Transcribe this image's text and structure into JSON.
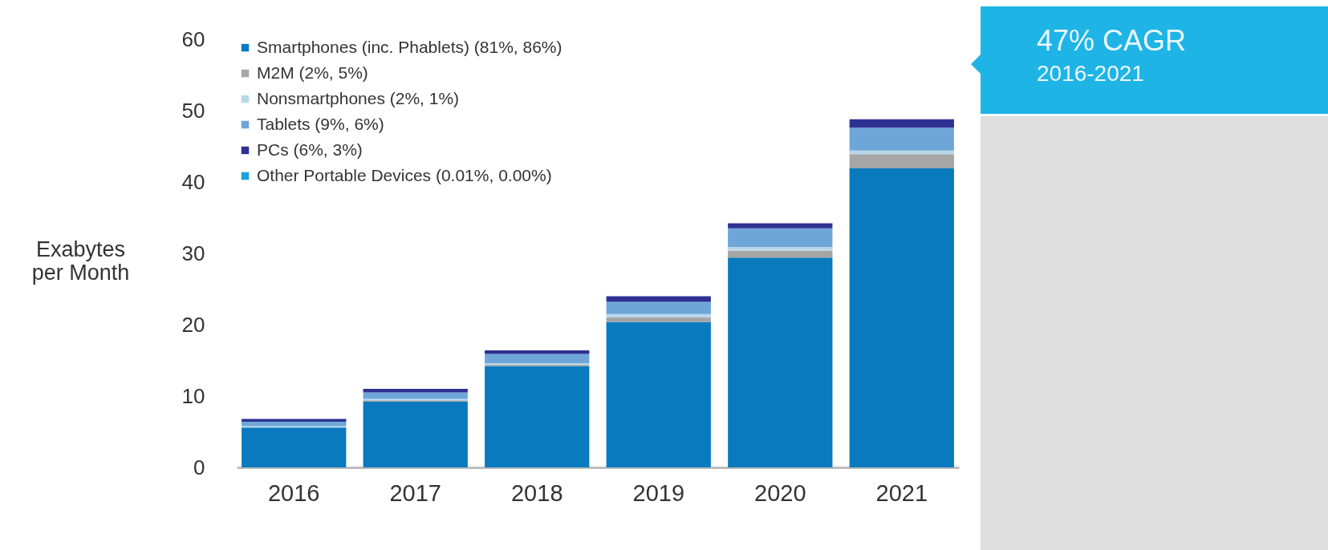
{
  "chart_data": {
    "type": "bar",
    "stacked": true,
    "ylabel": "Exabytes per Month",
    "categories": [
      "2016",
      "2017",
      "2018",
      "2019",
      "2020",
      "2021"
    ],
    "ylim": [
      0,
      60
    ],
    "yticks": [
      0,
      10,
      20,
      30,
      40,
      50,
      60
    ],
    "legend": "top left",
    "series": [
      {
        "name": "Smartphones (inc. Phablets) (81%, 86%)",
        "color": "#0a7abf",
        "values": [
          5.6,
          9.2,
          14.2,
          20.4,
          29.4,
          41.9
        ]
      },
      {
        "name": "M2M (2%, 5%)",
        "color": "#a6a6a6",
        "values": [
          null,
          0.2,
          0.2,
          0.6,
          1.0,
          2.0
        ]
      },
      {
        "name": "Nonsmartphones (2%, 1%)",
        "color": "#b8d8ea",
        "values": [
          0.2,
          0.2,
          0.2,
          0.5,
          0.5,
          0.5
        ]
      },
      {
        "name": "Tablets (9%, 6%)",
        "color": "#6ea6d8",
        "values": [
          0.6,
          0.9,
          1.3,
          1.7,
          2.6,
          3.2
        ]
      },
      {
        "name": "PCs (6%, 3%)",
        "color": "#2e3192",
        "values": [
          0.4,
          0.5,
          0.5,
          0.8,
          0.7,
          1.2
        ]
      },
      {
        "name": "Other Portable Devices (0.01%, 0.00%)",
        "color": "#1ba1d8",
        "values": [
          0,
          0,
          0,
          0,
          0,
          0
        ]
      }
    ],
    "annotations": [
      "47% CAGR",
      "2016-2021"
    ]
  }
}
